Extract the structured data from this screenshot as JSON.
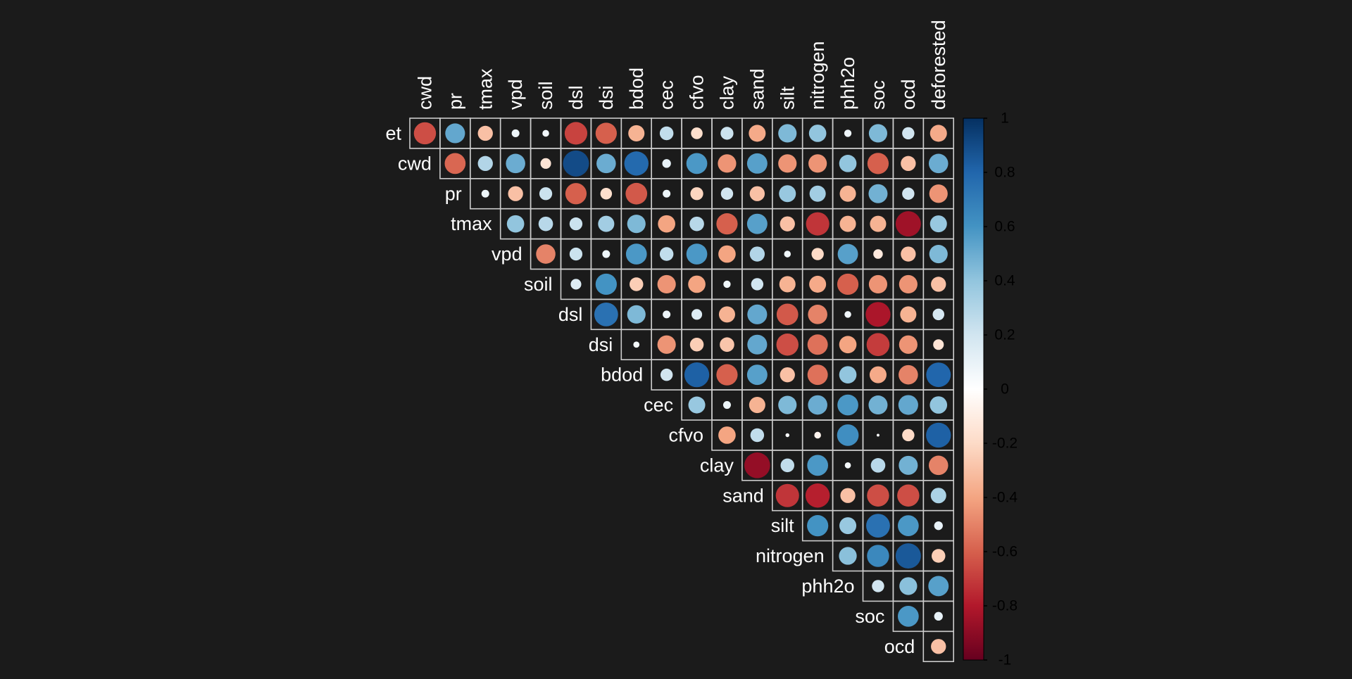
{
  "chart_data": {
    "type": "heatmap",
    "style": "upper-triangle correlation matrix with circle glyphs",
    "row_labels": [
      "et",
      "cwd",
      "pr",
      "tmax",
      "vpd",
      "soil",
      "dsl",
      "dsi",
      "bdod",
      "cec",
      "cfvo",
      "clay",
      "sand",
      "silt",
      "nitrogen",
      "phh2o",
      "soc",
      "ocd"
    ],
    "col_labels": [
      "cwd",
      "pr",
      "tmax",
      "vpd",
      "soil",
      "dsl",
      "dsi",
      "bdod",
      "cec",
      "cfvo",
      "clay",
      "sand",
      "silt",
      "nitrogen",
      "phh2o",
      "soc",
      "ocd",
      "deforested"
    ],
    "values": [
      [
        -0.65,
        0.52,
        -0.3,
        0.08,
        0.06,
        -0.68,
        -0.6,
        -0.35,
        0.25,
        -0.18,
        0.22,
        -0.38,
        0.45,
        0.4,
        0.07,
        0.45,
        0.2,
        -0.38
      ],
      [
        -0.58,
        0.3,
        0.5,
        -0.15,
        0.9,
        0.5,
        0.78,
        0.1,
        0.58,
        -0.45,
        0.55,
        -0.45,
        -0.45,
        0.4,
        -0.6,
        -0.3,
        0.5
      ],
      [
        0.08,
        -0.3,
        0.22,
        -0.6,
        -0.18,
        -0.62,
        0.08,
        -0.22,
        0.2,
        -0.3,
        0.38,
        0.35,
        -0.35,
        0.48,
        0.2,
        -0.45
      ],
      [
        0.4,
        0.28,
        0.22,
        0.35,
        0.45,
        -0.4,
        0.28,
        -0.6,
        0.55,
        -0.3,
        -0.72,
        -0.35,
        -0.35,
        -0.85,
        0.38
      ],
      [
        -0.5,
        0.22,
        0.08,
        0.58,
        0.25,
        0.58,
        -0.4,
        0.3,
        0.06,
        -0.2,
        0.55,
        -0.12,
        -0.3,
        0.45
      ],
      [
        0.15,
        0.6,
        -0.25,
        -0.45,
        -0.4,
        0.07,
        0.2,
        -0.35,
        -0.38,
        -0.6,
        -0.45,
        -0.45,
        -0.3
      ],
      [
        0.75,
        0.45,
        0.08,
        0.15,
        -0.35,
        0.52,
        -0.62,
        -0.5,
        0.06,
        -0.82,
        -0.35,
        0.18
      ],
      [
        0.05,
        -0.45,
        -0.25,
        -0.28,
        0.52,
        -0.65,
        -0.55,
        -0.4,
        -0.7,
        -0.45,
        -0.15
      ],
      [
        0.2,
        0.82,
        -0.6,
        0.55,
        -0.3,
        -0.55,
        0.4,
        -0.38,
        -0.5,
        0.8
      ],
      [
        0.38,
        0.08,
        -0.35,
        0.45,
        0.5,
        0.58,
        0.48,
        0.52,
        0.4
      ],
      [
        -0.4,
        0.25,
        0.02,
        -0.06,
        0.62,
        0.01,
        -0.2,
        0.82
      ],
      [
        -0.88,
        0.25,
        0.58,
        0.05,
        0.28,
        0.48,
        -0.5
      ],
      [
        -0.72,
        -0.78,
        -0.3,
        -0.65,
        -0.65,
        0.32
      ],
      [
        0.6,
        0.38,
        0.75,
        0.58,
        0.1
      ],
      [
        0.42,
        0.65,
        0.85,
        -0.25
      ],
      [
        0.2,
        0.42,
        0.55
      ],
      [
        0.58,
        0.1
      ],
      [
        -0.3
      ]
    ],
    "colorbar": {
      "min": -1,
      "max": 1,
      "ticks": [
        "1",
        "0.8",
        "0.6",
        "0.4",
        "0.2",
        "0",
        "-0.2",
        "-0.4",
        "-0.6",
        "-0.8",
        "-1"
      ]
    },
    "colors": {
      "background": "#1b1b1b",
      "grid": "#cccccc",
      "text": "#ffffff",
      "scale": [
        "#67001f",
        "#b2182b",
        "#d6604d",
        "#f4a582",
        "#fddbc7",
        "#ffffff",
        "#d1e5f0",
        "#92c5de",
        "#4393c3",
        "#2166ac",
        "#053061"
      ]
    }
  }
}
